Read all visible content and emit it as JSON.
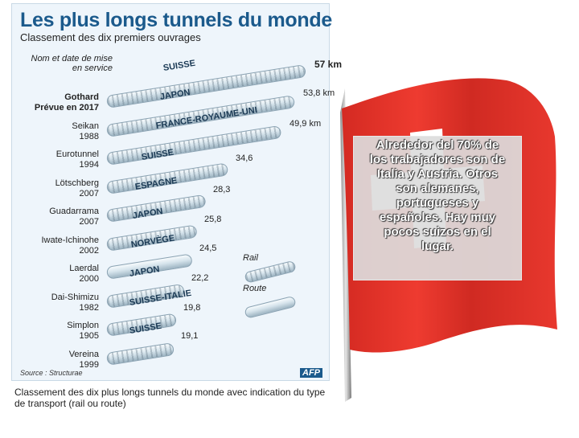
{
  "infographic": {
    "title": "Les plus longs tunnels du monde",
    "subtitle": "Classement des dix premiers ouvrages",
    "column_note": "Nom et date de mise en service",
    "tunnels": [
      {
        "name": "Gothard",
        "year": "Prévue en 2017",
        "country": "SUISSE",
        "length": "57 km",
        "length_km": 57,
        "mode": "rail"
      },
      {
        "name": "Seikan",
        "year": "1988",
        "country": "JAPON",
        "length": "53,8 km",
        "length_km": 53.8,
        "mode": "rail"
      },
      {
        "name": "Eurotunnel",
        "year": "1994",
        "country": "FRANCE-ROYAUME-UNI",
        "length": "49,9 km",
        "length_km": 49.9,
        "mode": "rail"
      },
      {
        "name": "Lötschberg",
        "year": "2007",
        "country": "SUISSE",
        "length": "34,6",
        "length_km": 34.6,
        "mode": "rail"
      },
      {
        "name": "Guadarrama",
        "year": "2007",
        "country": "ESPAGNE",
        "length": "28,3",
        "length_km": 28.3,
        "mode": "rail"
      },
      {
        "name": "Iwate-Ichinohe",
        "year": "2002",
        "country": "JAPON",
        "length": "25,8",
        "length_km": 25.8,
        "mode": "rail"
      },
      {
        "name": "Laerdal",
        "year": "2000",
        "country": "NORVÈGE",
        "length": "24,5",
        "length_km": 24.5,
        "mode": "road"
      },
      {
        "name": "Dai-Shimizu",
        "year": "1982",
        "country": "JAPON",
        "length": "22,2",
        "length_km": 22.2,
        "mode": "rail"
      },
      {
        "name": "Simplon",
        "year": "1905",
        "country": "SUISSE-ITALIE",
        "length": "19,8",
        "length_km": 19.8,
        "mode": "rail"
      },
      {
        "name": "Vereina",
        "year": "1999",
        "country": "SUISSE",
        "length": "19,1",
        "length_km": 19.1,
        "mode": "rail"
      }
    ],
    "legend": {
      "rail": "Rail",
      "road": "Route"
    },
    "source": "Source : Structurae",
    "agency": "AFP"
  },
  "caption": "Classement des dix plus longs tunnels du monde avec indication du type de transport (rail ou route)",
  "flag": {
    "text": "Alrededor del 70% de los trabajadores son de Italia y Austria. Otros son alemanes, portugueses y españoles. Hay muy pocos suizos en el lugar."
  },
  "colors": {
    "flag_red": "#e8332a",
    "title_blue": "#1b5a8c",
    "tube": "#c9d8e2"
  }
}
